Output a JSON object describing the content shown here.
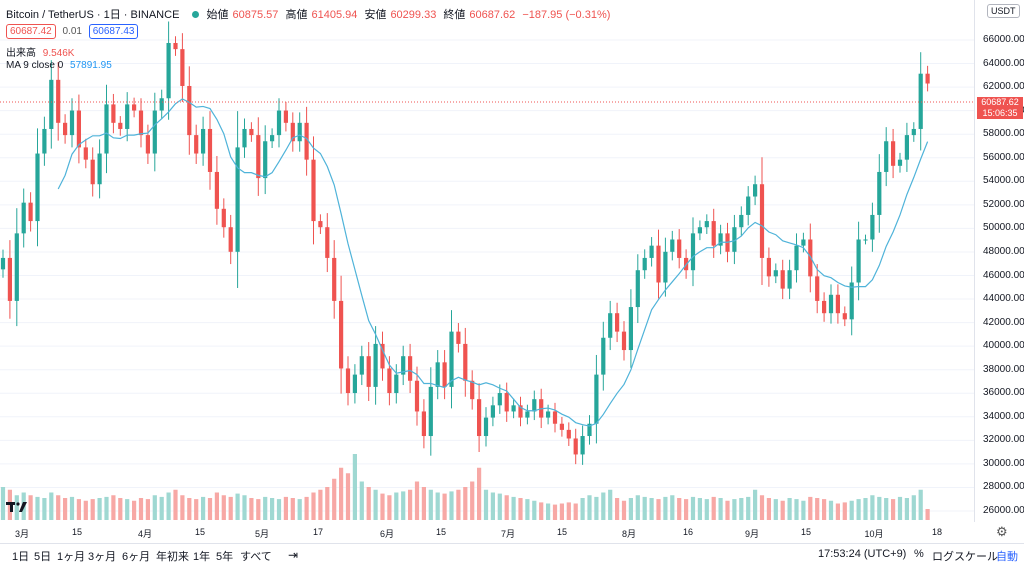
{
  "header": {
    "symbol": "Bitcoin / TetherUS · 1日 · BINANCE",
    "open_label": "始値",
    "open": "60875.57",
    "high_label": "高値",
    "high": "61405.94",
    "low_label": "安値",
    "low": "60299.33",
    "close_label": "終値",
    "close": "60687.62",
    "change": "−187.95 (−0.31%)"
  },
  "quotes": {
    "bid": "60687.42",
    "spread": "0.01",
    "ask": "60687.43"
  },
  "volume": {
    "label": "出来高",
    "value": "9.546K"
  },
  "ma": {
    "label": "MA 9 close 0",
    "value": "57891.95"
  },
  "price_axis": {
    "currency": "USDT",
    "ticks": [
      "66000.00",
      "64000.00",
      "62000.00",
      "60000.00",
      "58000.00",
      "56000.00",
      "54000.00",
      "52000.00",
      "50000.00",
      "48000.00",
      "46000.00",
      "44000.00",
      "42000.00",
      "40000.00",
      "38000.00",
      "36000.00",
      "34000.00",
      "32000.00",
      "30000.00",
      "28000.00",
      "26000.00"
    ],
    "last_price": "60687.62",
    "countdown": "15:06:35"
  },
  "time_axis": [
    "3月",
    "15",
    "4月",
    "15",
    "5月",
    "17",
    "6月",
    "15",
    "7月",
    "15",
    "8月",
    "16",
    "9月",
    "15",
    "10月",
    "18"
  ],
  "bottom_bar": {
    "ranges": [
      "1日",
      "5日",
      "1ヶ月",
      "3ヶ月",
      "6ヶ月",
      "年初来",
      "1年",
      "5年",
      "すべて"
    ],
    "clock": "17:53:24 (UTC+9)",
    "percent": "%",
    "log_scale": "ログスケール",
    "auto": "自動"
  },
  "colors": {
    "up": "#26a69a",
    "down": "#ef5350",
    "ma": "#4fb3d9",
    "vol_up": "#9fd8d2",
    "vol_down": "#f7a8a5"
  },
  "chart_data": {
    "type": "candlestick",
    "ylim": [
      25000,
      67500
    ],
    "ma_period": 9,
    "closes": [
      46500,
      43000,
      48500,
      51000,
      49500,
      55000,
      57000,
      61000,
      57500,
      56500,
      58500,
      55500,
      54500,
      52500,
      55000,
      59000,
      57500,
      57000,
      59000,
      58500,
      56500,
      55000,
      58500,
      59500,
      64000,
      63500,
      60500,
      56500,
      55000,
      57000,
      53500,
      50500,
      49000,
      47000,
      55500,
      57000,
      56500,
      53000,
      56000,
      56500,
      58500,
      57500,
      56000,
      57500,
      54500,
      49500,
      49000,
      46500,
      43000,
      37500,
      35500,
      37000,
      38500,
      36000,
      39500,
      37500,
      35500,
      37000,
      38500,
      36500,
      34000,
      32000,
      36000,
      38000,
      36000,
      40500,
      39500,
      36500,
      35000,
      32000,
      33500,
      34500,
      35500,
      34000,
      34500,
      33500,
      34000,
      35000,
      33500,
      34000,
      33000,
      32500,
      31800,
      30500,
      32000,
      33000,
      37000,
      40000,
      42000,
      40500,
      39000,
      42500,
      45500,
      46500,
      47500,
      44500,
      47000,
      48000,
      46500,
      45500,
      48500,
      49000,
      49500,
      47500,
      48500,
      47000,
      49000,
      50000,
      51500,
      52500,
      46500,
      45000,
      45500,
      44000,
      45500,
      47500,
      48000,
      45000,
      43000,
      42000,
      43500,
      42000,
      41500,
      44500,
      48000,
      48000,
      50000,
      53500,
      56000,
      54000,
      54500,
      56500,
      57000,
      61500,
      60700
    ],
    "volumes": [
      60,
      55,
      45,
      50,
      45,
      42,
      40,
      50,
      45,
      40,
      42,
      38,
      35,
      38,
      40,
      42,
      45,
      40,
      38,
      35,
      40,
      38,
      45,
      42,
      50,
      55,
      45,
      40,
      38,
      42,
      40,
      50,
      45,
      42,
      48,
      45,
      40,
      38,
      42,
      40,
      38,
      42,
      40,
      38,
      42,
      50,
      55,
      60,
      75,
      95,
      85,
      120,
      70,
      60,
      55,
      48,
      45,
      50,
      52,
      55,
      70,
      60,
      55,
      50,
      48,
      52,
      55,
      60,
      70,
      95,
      55,
      50,
      48,
      45,
      42,
      40,
      38,
      35,
      32,
      30,
      28,
      30,
      32,
      30,
      40,
      45,
      42,
      50,
      55,
      40,
      35,
      40,
      45,
      42,
      40,
      38,
      42,
      45,
      40,
      38,
      42,
      40,
      38,
      42,
      40,
      35,
      38,
      40,
      42,
      55,
      45,
      40,
      38,
      35,
      40,
      38,
      35,
      42,
      40,
      38,
      35,
      30,
      32,
      35,
      38,
      40,
      45,
      42,
      40,
      38,
      42,
      40,
      45,
      55,
      20
    ]
  }
}
